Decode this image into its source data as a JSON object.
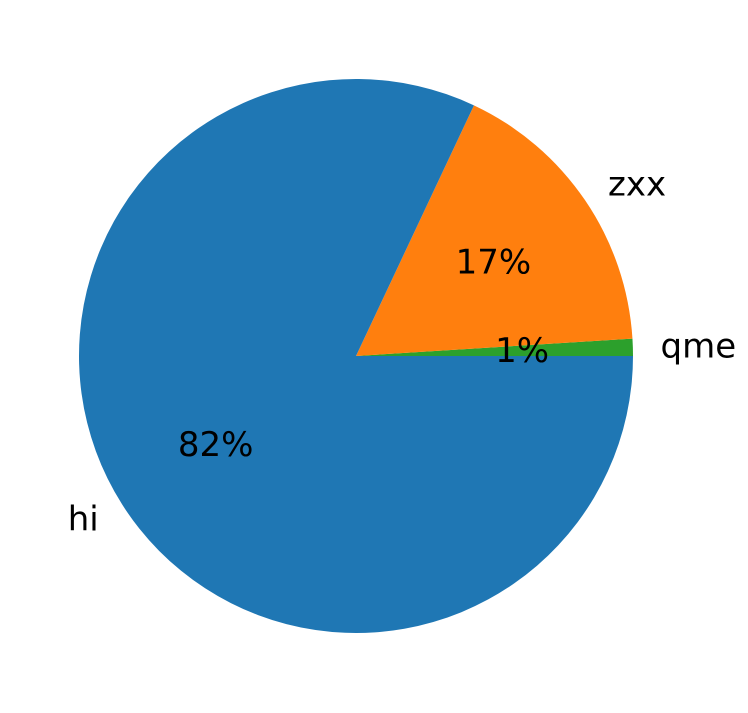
{
  "chart_data": {
    "type": "pie",
    "categories": [
      "qme",
      "zxx",
      "hi"
    ],
    "values": [
      1,
      17,
      82
    ],
    "labels": [
      "1%",
      "17%",
      "82%"
    ],
    "colors": [
      "#2ca02c",
      "#ff7f0e",
      "#1f77b4"
    ],
    "start_angle_deg": 0,
    "direction": "counterclockwise",
    "legend": "none"
  }
}
